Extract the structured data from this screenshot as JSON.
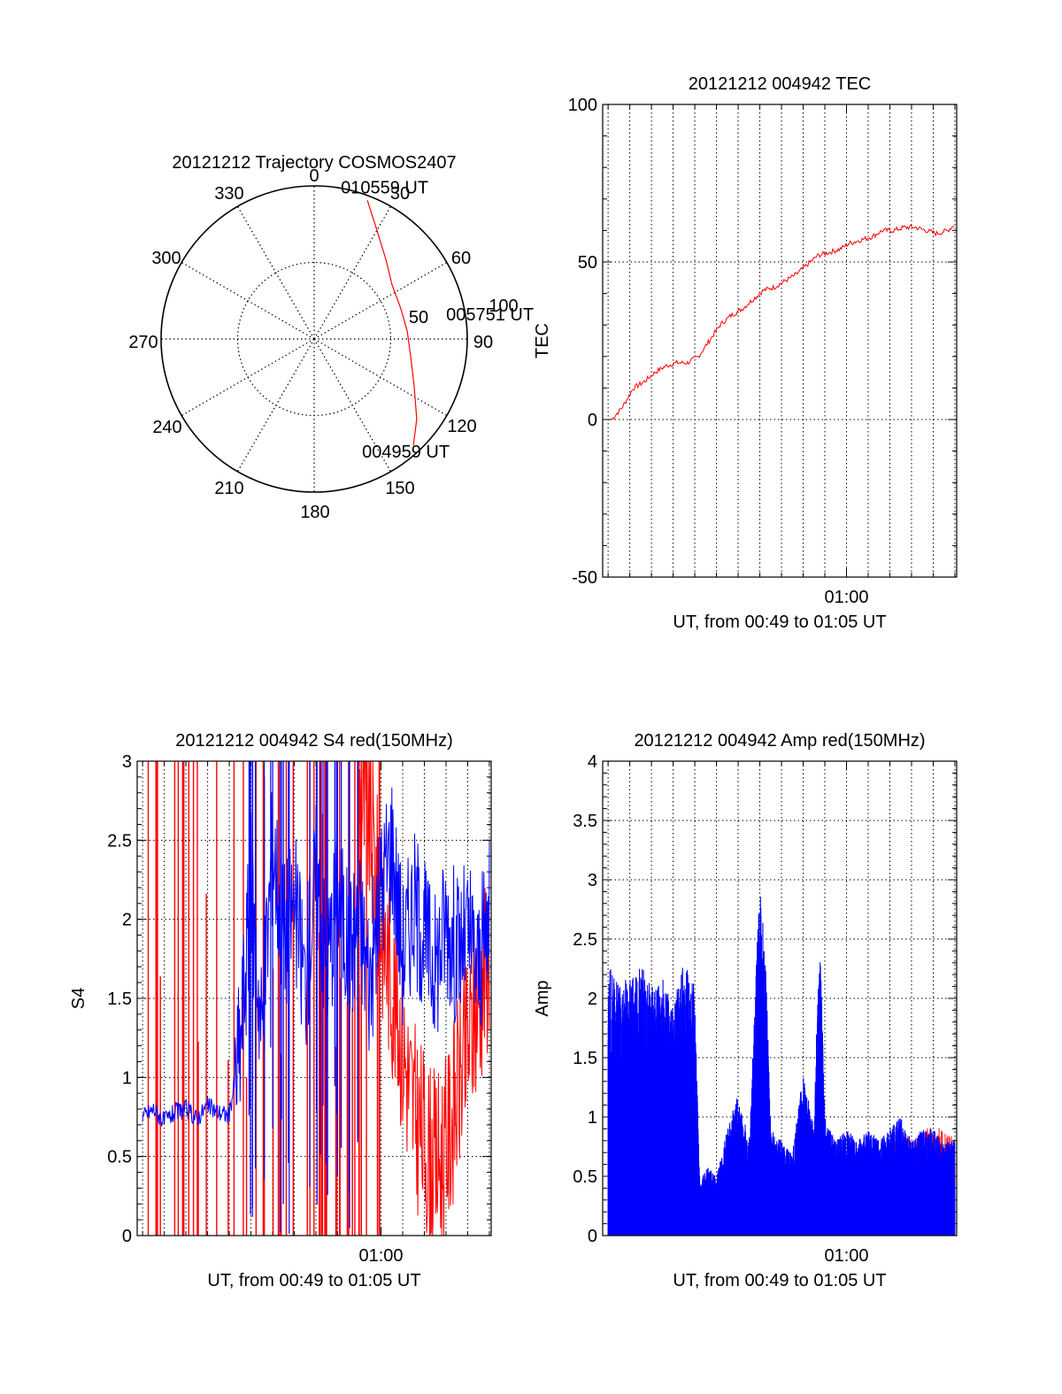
{
  "colors": {
    "red": "#ff0000",
    "blue": "#0000ff",
    "axis": "#000000",
    "grid": "#000000"
  },
  "chart_data": [
    {
      "type": "polar",
      "title": "20121212 Trajectory COSMOS2407",
      "angle_ticks": [
        "0",
        "30",
        "60",
        "90",
        "120",
        "150",
        "180",
        "210",
        "240",
        "270",
        "300",
        "330"
      ],
      "radial_ticks": [
        "50",
        "100"
      ],
      "grid": true,
      "series": [
        {
          "color": "#ff0000",
          "points": [
            {
              "az": 21,
              "el": 97
            },
            {
              "az": 30,
              "el": 82
            },
            {
              "az": 42,
              "el": 70
            },
            {
              "az": 55,
              "el": 62
            },
            {
              "az": 70,
              "el": 60
            },
            {
              "az": 85,
              "el": 61
            },
            {
              "az": 100,
              "el": 64
            },
            {
              "az": 115,
              "el": 72
            },
            {
              "az": 128,
              "el": 85
            },
            {
              "az": 137,
              "el": 95
            }
          ]
        }
      ],
      "annotations": [
        {
          "text": "010559 UT",
          "az": 21,
          "el": 97
        },
        {
          "text": "005751 UT",
          "az": 85,
          "el": 61
        },
        {
          "text": "004959 UT",
          "az": 137,
          "el": 95
        }
      ]
    },
    {
      "type": "line",
      "title": "20121212 004942 TEC",
      "xlabel": "UT, from 00:49 to 01:05 UT",
      "ylabel": "TEC",
      "xlim": [
        "00:48:45",
        "01:05:05"
      ],
      "ylim": [
        -50,
        100
      ],
      "y_ticks": [
        "-50",
        "0",
        "50",
        "100"
      ],
      "x_tick_label": "01:00",
      "grid": true,
      "series": [
        {
          "color": "#ff0000",
          "x": [
            "00:49:10",
            "00:49:40",
            "00:50:10",
            "00:50:40",
            "00:51:10",
            "00:51:40",
            "00:52:10",
            "00:52:40",
            "00:53:10",
            "00:53:40",
            "00:54:10",
            "00:54:40",
            "00:55:10",
            "00:55:40",
            "00:56:10",
            "00:56:40",
            "00:57:10",
            "00:57:40",
            "00:58:10",
            "00:58:40",
            "00:59:10",
            "00:59:40",
            "01:00:10",
            "01:00:40",
            "01:01:10",
            "01:01:40",
            "01:02:10",
            "01:02:40",
            "01:03:10",
            "01:03:40",
            "01:04:10",
            "01:04:40",
            "01:05:00"
          ],
          "y": [
            0,
            4,
            10,
            12,
            15,
            17,
            18,
            18,
            20,
            25,
            30,
            33,
            35,
            38,
            41,
            42,
            44,
            46,
            49,
            52,
            53,
            54,
            56,
            57,
            58,
            60,
            60,
            61,
            61,
            60,
            59,
            60,
            62
          ]
        }
      ]
    },
    {
      "type": "line",
      "title": "20121212 004942 S4 red(150MHz)",
      "xlabel": "UT, from 00:49 to 01:05 UT",
      "ylabel": "S4",
      "xlim": [
        "00:48:45",
        "01:05:05"
      ],
      "ylim": [
        0,
        3
      ],
      "y_ticks": [
        "0",
        "0.5",
        "1",
        "1.5",
        "2",
        "2.5",
        "3"
      ],
      "x_tick_label": "01:00",
      "grid": true,
      "series": [
        {
          "color": "#0000ff",
          "x": [
            "00:49:00",
            "00:49:30",
            "00:50:00",
            "00:50:30",
            "00:51:00",
            "00:51:30",
            "00:52:00",
            "00:52:30",
            "00:53:00",
            "00:53:30",
            "00:54:00",
            "00:54:30",
            "00:55:00",
            "00:55:30",
            "00:56:00",
            "00:56:30",
            "00:57:00",
            "00:57:30",
            "00:58:00",
            "00:58:30",
            "00:59:00",
            "00:59:30",
            "01:00:00",
            "01:00:30",
            "01:01:00",
            "01:01:30",
            "01:02:00",
            "01:02:30",
            "01:03:00",
            "01:03:30",
            "01:04:00",
            "01:04:30",
            "01:05:00"
          ],
          "y": [
            0.75,
            0.8,
            0.72,
            0.78,
            0.8,
            0.74,
            0.82,
            0.78,
            0.76,
            1.2,
            2.2,
            1.3,
            2.5,
            1.9,
            2.1,
            1.6,
            2.3,
            1.7,
            2.2,
            1.8,
            2.0,
            1.6,
            2.2,
            2.5,
            1.8,
            2.1,
            1.9,
            1.7,
            2.0,
            1.8,
            1.9,
            1.7,
            2.0
          ]
        },
        {
          "color": "#ff0000",
          "x": [
            "00:59:00",
            "00:59:30",
            "01:00:00",
            "01:00:30",
            "01:01:00",
            "01:01:30",
            "01:02:00",
            "01:02:30",
            "01:03:00",
            "01:03:30",
            "01:04:00",
            "01:04:30",
            "01:05:00"
          ],
          "y": [
            2.8,
            2.6,
            2.0,
            1.6,
            1.2,
            0.8,
            0.6,
            0.45,
            0.55,
            0.9,
            1.2,
            1.5,
            1.8
          ]
        }
      ]
    },
    {
      "type": "line",
      "title": "20121212 004942 Amp red(150MHz)",
      "xlabel": "UT, from 00:49 to 01:05 UT",
      "ylabel": "Amp",
      "xlim": [
        "00:48:45",
        "01:05:05"
      ],
      "ylim": [
        0,
        4
      ],
      "y_ticks": [
        "0",
        "0.5",
        "1",
        "1.5",
        "2",
        "2.5",
        "3",
        "3.5",
        "4"
      ],
      "x_tick_label": "01:00",
      "grid": true,
      "series": [
        {
          "color": "#0000ff",
          "x": [
            "00:49:00",
            "00:49:30",
            "00:50:00",
            "00:50:30",
            "00:51:00",
            "00:51:30",
            "00:52:00",
            "00:52:30",
            "00:53:00",
            "00:53:15",
            "00:53:30",
            "00:54:00",
            "00:54:30",
            "00:55:00",
            "00:55:30",
            "00:56:00",
            "00:56:15",
            "00:56:30",
            "00:57:00",
            "00:57:30",
            "00:58:00",
            "00:58:30",
            "00:58:45",
            "00:59:00",
            "00:59:30",
            "01:00:00",
            "01:00:30",
            "01:01:00",
            "01:01:30",
            "01:02:00",
            "01:02:30",
            "01:03:00",
            "01:03:30",
            "01:04:00",
            "01:04:30",
            "01:05:00"
          ],
          "y": [
            2.3,
            2.1,
            2.2,
            2.3,
            2.1,
            2.2,
            2.0,
            2.3,
            2.1,
            0.4,
            0.6,
            0.5,
            0.9,
            1.2,
            0.8,
            3.0,
            2.5,
            0.9,
            0.8,
            0.7,
            1.4,
            0.9,
            2.7,
            1.0,
            0.8,
            0.9,
            0.8,
            0.9,
            0.8,
            0.9,
            1.0,
            0.8,
            0.9,
            0.9,
            0.8,
            0.8
          ]
        },
        {
          "color": "#ff0000",
          "x": [
            "01:02:00",
            "01:02:30",
            "01:03:00",
            "01:03:30",
            "01:04:00",
            "01:04:30",
            "01:05:00"
          ],
          "y": [
            0.7,
            0.8,
            0.75,
            0.8,
            0.85,
            0.8,
            0.75
          ]
        }
      ]
    }
  ]
}
